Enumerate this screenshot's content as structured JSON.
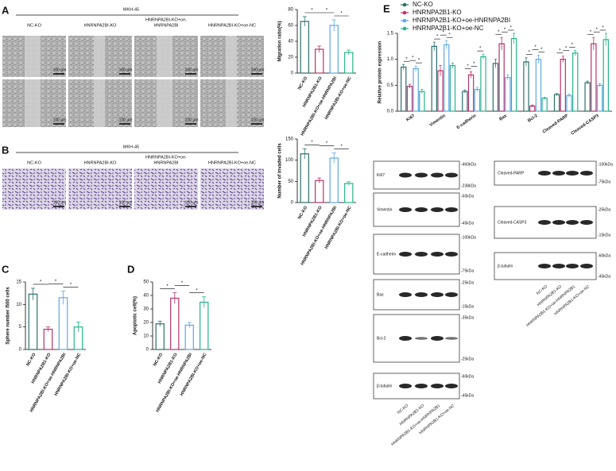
{
  "panels": [
    "A",
    "B",
    "C",
    "D",
    "E"
  ],
  "wound_assay": {
    "cell_line": "MKH-45",
    "groups": [
      [
        "NC-KO"
      ],
      [
        "HNRNPA2BI-KO"
      ],
      [
        "HNRNPA2BI-KO+oe-",
        "HNRNPA2BI"
      ],
      [
        "HNRNPA2BI-KO+oe-NC"
      ]
    ],
    "scale_bar": "100 μm"
  },
  "invasion_assay": {
    "cell_line": "MKH-45",
    "groups": [
      [
        "NC-KO"
      ],
      [
        "HNRNPA2BI-KO"
      ],
      [
        "HNRNPA2BI-KO+oe-",
        "HNRNPA2BI"
      ],
      [
        "HNRNPA2BI-KO+oe-NC"
      ]
    ],
    "scale_bar": "100 μm"
  },
  "western_blot": {
    "left": {
      "rows": [
        {
          "label": "Ki67",
          "markers": [
            "-460kDa",
            "-238kDa"
          ]
        },
        {
          "label": "Vimentin",
          "markers": [
            "-60kDa",
            "-45kDa"
          ]
        },
        {
          "label": "E-cadherin",
          "markers": [
            "-100kDa",
            "-75kDa"
          ]
        },
        {
          "label": "Bax",
          "markers": [
            "-25kDa",
            "-15kDa"
          ]
        },
        {
          "label": "Bcl-2",
          "markers": [
            "-35kDa",
            "-25kDa"
          ]
        },
        {
          "label": "β-tubulin",
          "markers": [
            "-60kDa",
            "-45kDa"
          ]
        }
      ],
      "lanes": [
        "NC-KO",
        "HNRNPA2B1-KO",
        "HNRNPA2B1-KO+oe-HNRNPA2B1",
        "HNRNPA2B1-KO+oe-NC"
      ]
    },
    "right": {
      "rows": [
        {
          "label": "Cleaved-PARP",
          "markers": [
            "-100kDa",
            "-75kDa"
          ]
        },
        {
          "label": "Cleaved-CASP3",
          "markers": [
            "-25kDa",
            "-15kDa"
          ]
        },
        {
          "label": "β-tubulin",
          "markers": [
            "-60kDa",
            "-45kDa"
          ]
        }
      ],
      "lanes": [
        "NC-KO",
        "HNRNPA2B1-KO",
        "HNRNPA2B1-KO+oe-HNRNPA2B1",
        "HNRNPA2B1-KO+oe-NC"
      ]
    }
  },
  "chart_data": [
    {
      "type": "bar",
      "y_label": "Migration ratio(%)",
      "categories": [
        "NC-KO",
        "HNRNPA2B1-KO",
        "HNRNPA2BI-KO+oe-HNRNPA2BI",
        "HNRNPA2BI-KO+oe-NC"
      ],
      "values": [
        65,
        30,
        60,
        26
      ],
      "errors": [
        6,
        4,
        7,
        3
      ],
      "colors": [
        "#2a6f6b",
        "#b8336a",
        "#5fa8e6",
        "#27b38a"
      ],
      "ylim": [
        0,
        80
      ],
      "yticks": [
        0,
        20,
        40,
        60,
        80
      ],
      "annotations": [
        "*",
        "*",
        "*"
      ]
    },
    {
      "type": "bar",
      "y_label": "Number of invaded cells",
      "categories": [
        "NC-KO",
        "HNRNPA2B1-KO",
        "HNRNPA2BI-KO+oe-HNRNPA2BI",
        "HNRNPA2BI-KO+oe-NC"
      ],
      "values": [
        115,
        52,
        105,
        45
      ],
      "errors": [
        12,
        6,
        12,
        4
      ],
      "colors": [
        "#2a6f6b",
        "#b8336a",
        "#5fa8e6",
        "#27b38a"
      ],
      "ylim": [
        0,
        150
      ],
      "yticks": [
        0,
        50,
        100,
        150
      ],
      "annotations": [
        "*",
        "*",
        "*"
      ]
    },
    {
      "type": "bar",
      "y_label": "Sphere number /500 cells",
      "categories": [
        "NC-KO",
        "HNRNPA2B1-KO",
        "HNRNPA2BI-KO+oe-HNRNPA2BI",
        "HNRNPA2BI-KO+oe-NC"
      ],
      "values": [
        12.3,
        4.5,
        11.5,
        5
      ],
      "errors": [
        1.3,
        0.5,
        1.5,
        1.1
      ],
      "colors": [
        "#2a6f6b",
        "#b8336a",
        "#5fa8e6",
        "#27b38a"
      ],
      "ylim": [
        0,
        15
      ],
      "yticks": [
        0,
        5,
        10,
        15
      ],
      "annotations": [
        "*",
        "*",
        "*"
      ]
    },
    {
      "type": "bar",
      "y_label": "Apoptotic cell(%)",
      "categories": [
        "NC-KO",
        "HNRNPA2B1-KO",
        "HNRNPA2BI-KO+oe-HNRNPA2BI",
        "HNRNPA2BI-KO+oe-NC"
      ],
      "values": [
        19,
        38,
        18,
        35
      ],
      "errors": [
        2,
        4,
        2,
        4
      ],
      "colors": [
        "#2a6f6b",
        "#b8336a",
        "#5fa8e6",
        "#27b38a"
      ],
      "ylim": [
        0,
        50
      ],
      "yticks": [
        0,
        10,
        20,
        30,
        40,
        50
      ],
      "annotations": [
        "*",
        "*",
        "*"
      ]
    },
    {
      "type": "bar",
      "y_label": "Relative protein expression",
      "categories": [
        "Ki67",
        "Vimentin",
        "E-cadherin",
        "Bax",
        "Bcl-2",
        "Cleaved-PARP",
        "Cleaved-CASP3"
      ],
      "series": [
        {
          "name": "NC-KO",
          "color": "#2a6f6b",
          "values": [
            0.85,
            1.25,
            0.38,
            0.92,
            0.95,
            0.32,
            0.55
          ],
          "errors": [
            0.05,
            0.08,
            0.03,
            0.08,
            0.08,
            0.02,
            0.03
          ]
        },
        {
          "name": "HNRNPA2B1-KO",
          "color": "#b8336a",
          "values": [
            0.48,
            0.78,
            0.7,
            1.3,
            0.1,
            1.0,
            1.3
          ],
          "errors": [
            0.04,
            0.1,
            0.06,
            0.12,
            0.02,
            0.06,
            0.12
          ]
        },
        {
          "name": "HNRNPA2B1-KO+oe-HNRNPA2BI",
          "color": "#5fa8e6",
          "values": [
            0.82,
            1.28,
            0.42,
            0.65,
            1.0,
            0.3,
            0.5
          ],
          "errors": [
            0.05,
            0.08,
            0.04,
            0.05,
            0.08,
            0.03,
            0.03
          ]
        },
        {
          "name": "HNRNPA2B1-KO+oe-NC",
          "color": "#27b38a",
          "values": [
            0.38,
            0.88,
            1.05,
            1.4,
            0.25,
            1.12,
            1.38
          ],
          "errors": [
            0.04,
            0.05,
            0.05,
            0.1,
            0.02,
            0.05,
            0.12
          ]
        }
      ],
      "ylim": [
        0,
        1.5
      ],
      "yticks": [
        {
          "value": 0,
          "label": "0.0"
        },
        0.5,
        {
          "value": 1,
          "label": "1.0"
        },
        1.5
      ],
      "annotations": [
        "*",
        "*",
        "*",
        "*",
        "*",
        "*",
        "*",
        "*",
        "*",
        "*",
        "*",
        "*",
        "*",
        "*",
        "*",
        "*",
        "*",
        "*",
        "*",
        "*",
        "*"
      ]
    }
  ]
}
